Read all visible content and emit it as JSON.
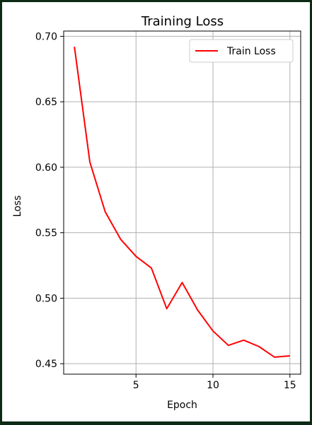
{
  "chart_data": {
    "type": "line",
    "title": "Training Loss",
    "xlabel": "Epoch",
    "ylabel": "Loss",
    "xlim": [
      0.3,
      15.7
    ],
    "ylim": [
      0.442,
      0.704
    ],
    "x_ticks": [
      5,
      10,
      15
    ],
    "x_tick_labels": [
      "5",
      "10",
      "15"
    ],
    "y_ticks": [
      0.45,
      0.5,
      0.55,
      0.6,
      0.65,
      0.7
    ],
    "y_tick_labels": [
      "0.45",
      "0.50",
      "0.55",
      "0.60",
      "0.65",
      "0.70"
    ],
    "grid": true,
    "legend_position": "top-right",
    "series": [
      {
        "name": "Train Loss",
        "color": "#ff0000",
        "x": [
          1,
          2,
          3,
          4,
          5,
          6,
          7,
          8,
          9,
          10,
          11,
          12,
          13,
          14,
          15
        ],
        "values": [
          0.692,
          0.604,
          0.566,
          0.545,
          0.532,
          0.523,
          0.492,
          0.512,
          0.491,
          0.475,
          0.464,
          0.468,
          0.463,
          0.455,
          0.456
        ]
      }
    ]
  }
}
